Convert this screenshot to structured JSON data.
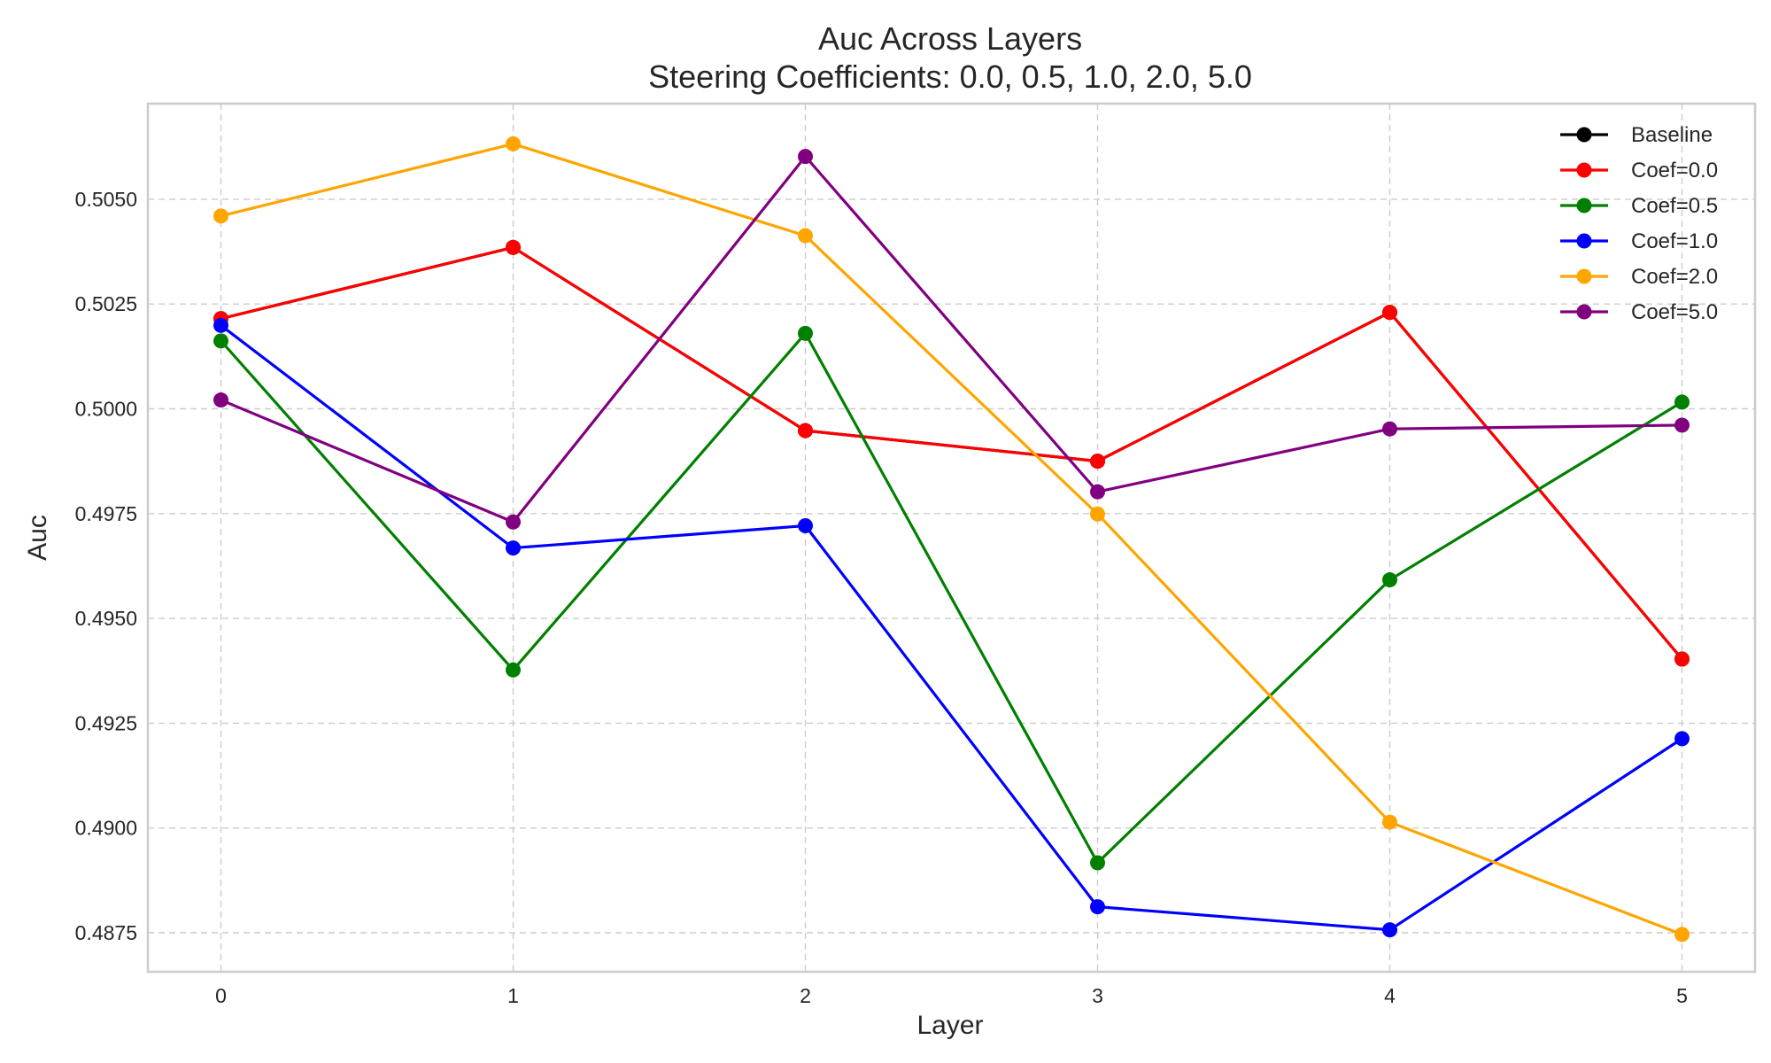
{
  "chart_data": {
    "type": "line",
    "title": "Auc Across Layers",
    "subtitle": "Steering Coefficients: 0.0, 0.5, 1.0, 2.0, 5.0",
    "xlabel": "Layer",
    "ylabel": "Auc",
    "x": [
      0,
      1,
      2,
      3,
      4,
      5
    ],
    "xlim": [
      -0.25,
      5.25
    ],
    "ylim": [
      0.48657,
      0.50728
    ],
    "yticks": [
      0.4875,
      0.49,
      0.4925,
      0.495,
      0.4975,
      0.5,
      0.5025,
      0.505
    ],
    "ytick_labels": [
      "0.4875",
      "0.4900",
      "0.4925",
      "0.4950",
      "0.4975",
      "0.5000",
      "0.5025",
      "0.5050"
    ],
    "xtick_labels": [
      "0",
      "1",
      "2",
      "3",
      "4",
      "5"
    ],
    "grid": true,
    "legend_position": "top-right",
    "series": [
      {
        "name": "Baseline",
        "color": "#000000",
        "values": [
          0.50215,
          0.50385,
          0.49948,
          0.49875,
          0.5023,
          0.49403
        ]
      },
      {
        "name": "Coef=0.0",
        "color": "#ff0000",
        "values": [
          0.50215,
          0.50385,
          0.49948,
          0.49875,
          0.5023,
          0.49403
        ]
      },
      {
        "name": "Coef=0.5",
        "color": "#008000",
        "values": [
          0.50162,
          0.49377,
          0.5018,
          0.48917,
          0.49592,
          0.50016
        ]
      },
      {
        "name": "Coef=1.0",
        "color": "#0000ff",
        "values": [
          0.50199,
          0.49668,
          0.49721,
          0.48812,
          0.48757,
          0.49213
        ]
      },
      {
        "name": "Coef=2.0",
        "color": "#ffa500",
        "values": [
          0.5046,
          0.50632,
          0.50413,
          0.49749,
          0.49014,
          0.48746
        ]
      },
      {
        "name": "Coef=5.0",
        "color": "#800080",
        "values": [
          0.50021,
          0.4973,
          0.50602,
          0.49802,
          0.49952,
          0.49961
        ]
      }
    ]
  }
}
